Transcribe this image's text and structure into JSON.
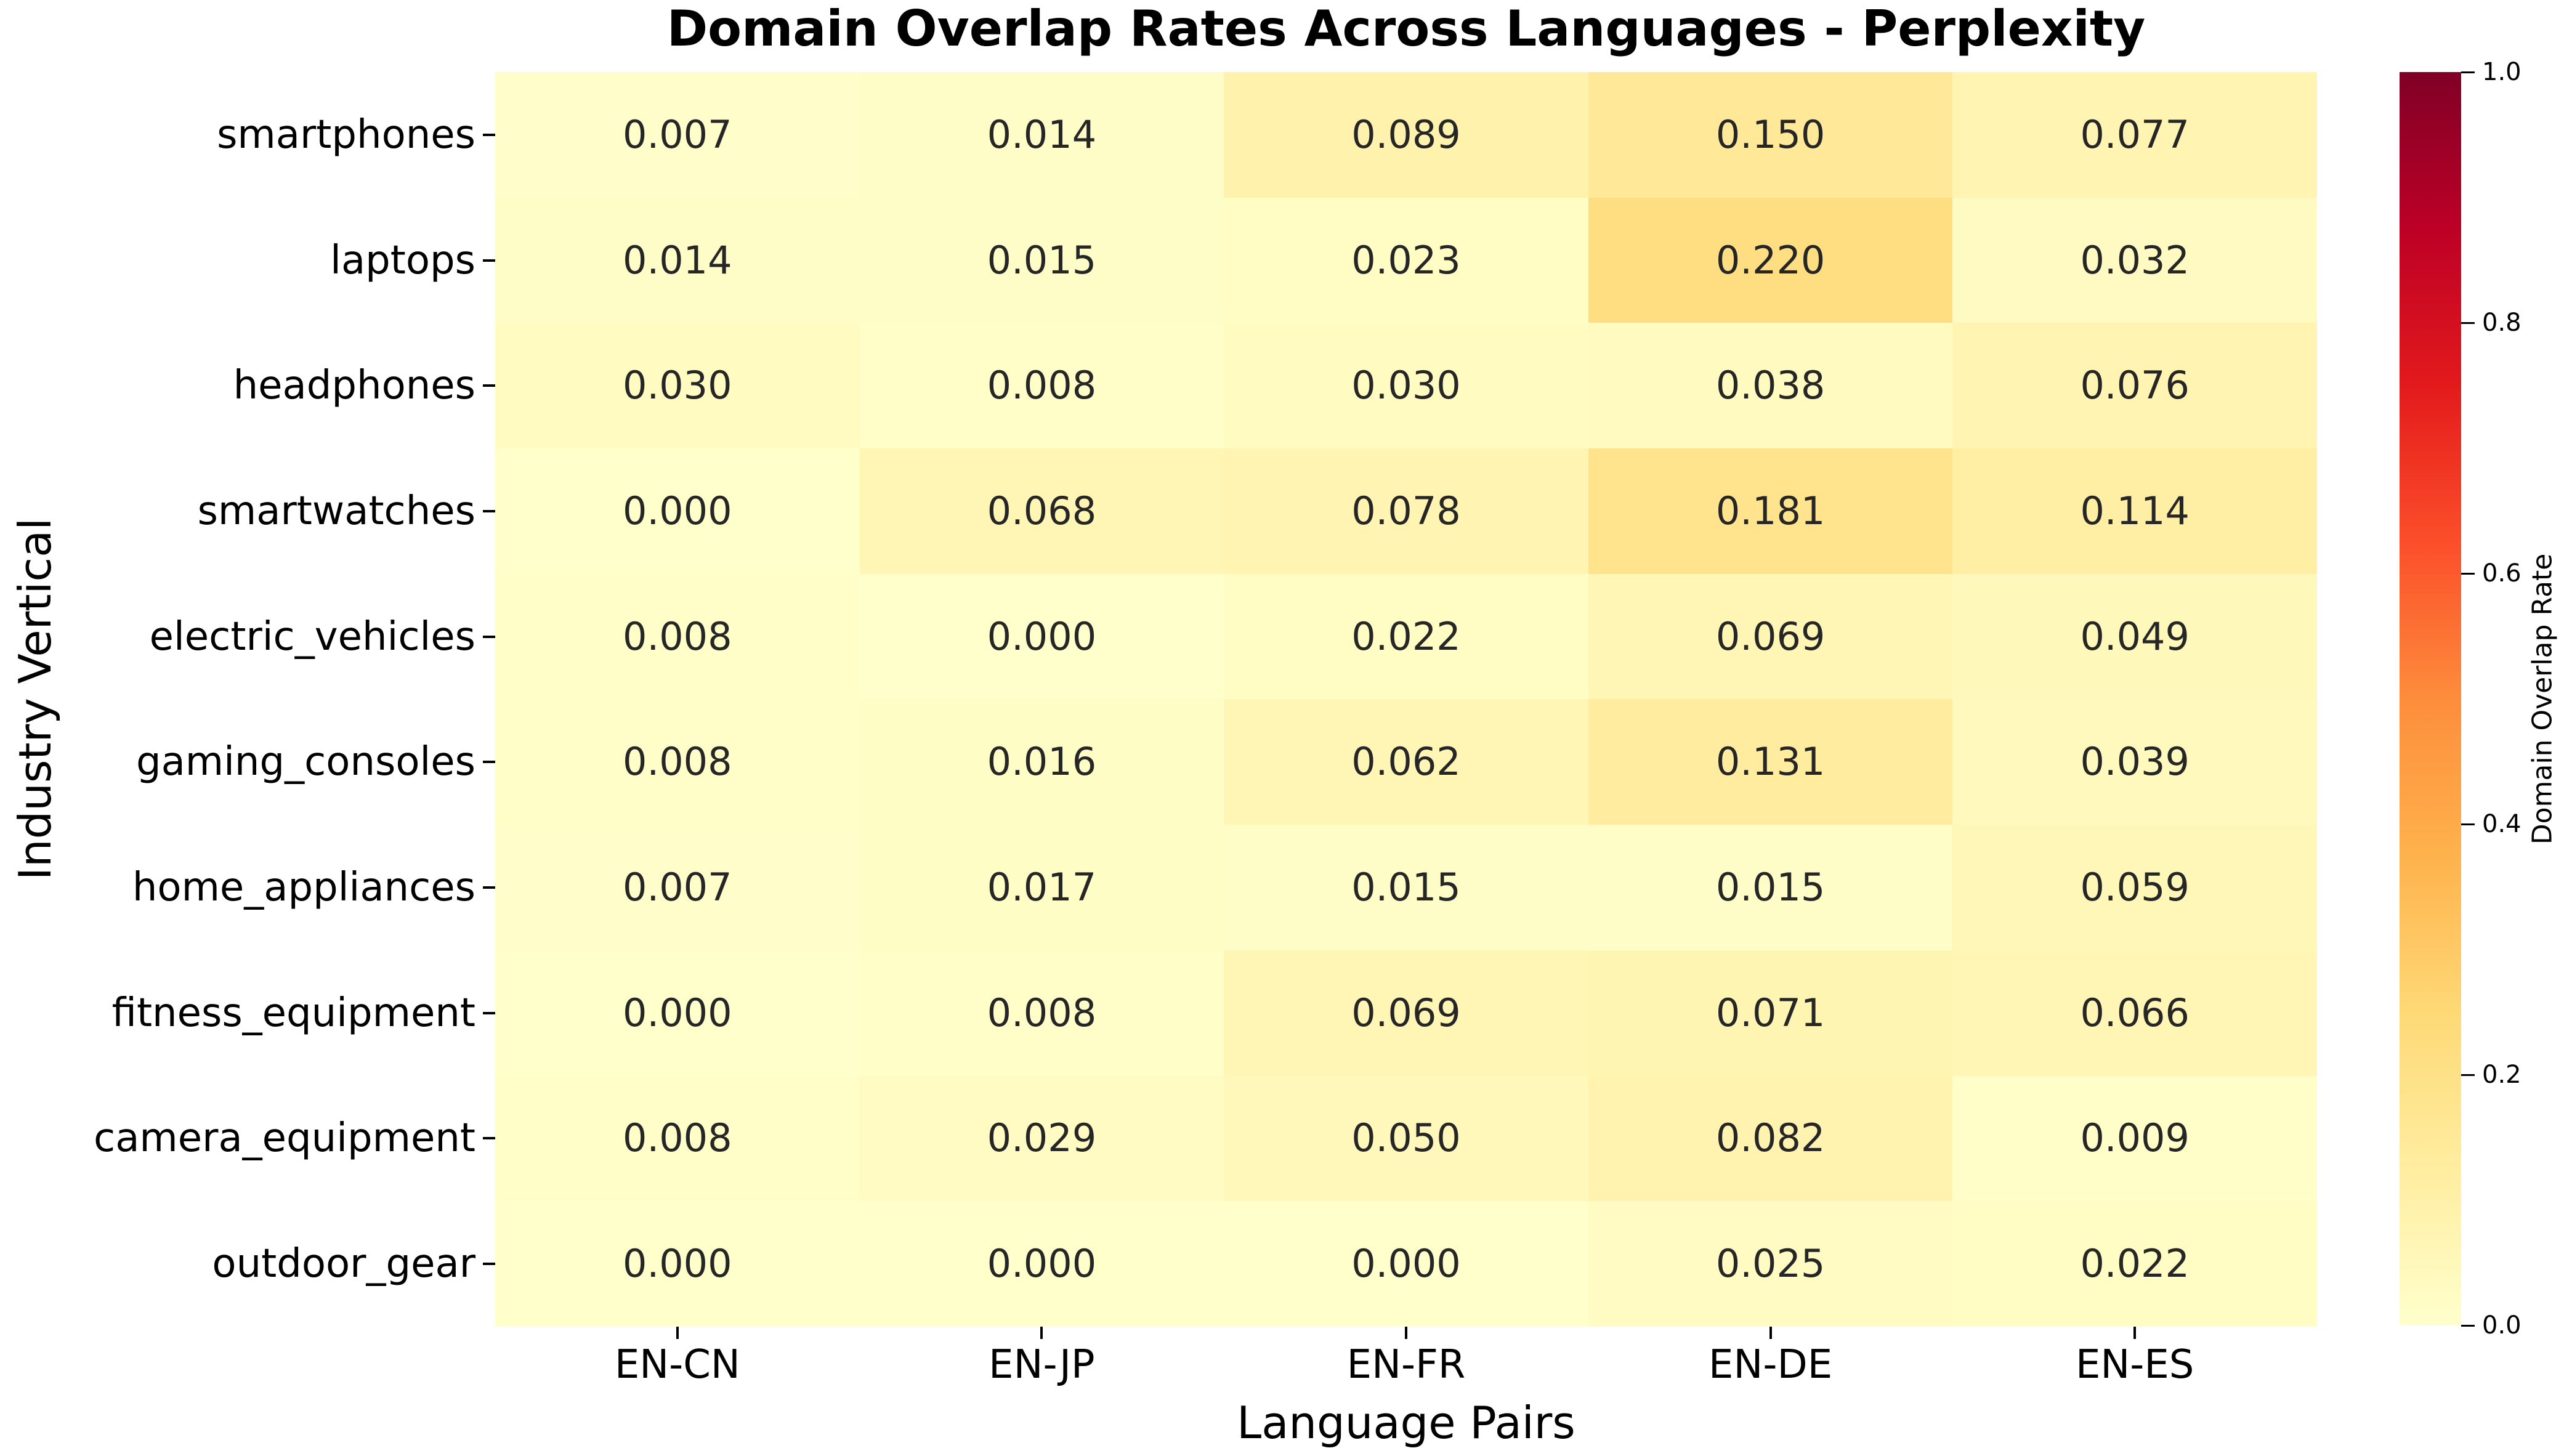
{
  "chart_data": {
    "type": "heatmap",
    "title": "Domain Overlap Rates Across Languages - Perplexity",
    "xlabel": "Language Pairs",
    "ylabel": "Industry Vertical",
    "x_categories": [
      "EN-CN",
      "EN-JP",
      "EN-FR",
      "EN-DE",
      "EN-ES"
    ],
    "y_categories": [
      "smartphones",
      "laptops",
      "headphones",
      "smartwatches",
      "electric_vehicles",
      "gaming_consoles",
      "home_appliances",
      "fitness_equipment",
      "camera_equipment",
      "outdoor_gear"
    ],
    "values": [
      [
        0.007,
        0.014,
        0.089,
        0.15,
        0.077
      ],
      [
        0.014,
        0.015,
        0.023,
        0.22,
        0.032
      ],
      [
        0.03,
        0.008,
        0.03,
        0.038,
        0.076
      ],
      [
        0.0,
        0.068,
        0.078,
        0.181,
        0.114
      ],
      [
        0.008,
        0.0,
        0.022,
        0.069,
        0.049
      ],
      [
        0.008,
        0.016,
        0.062,
        0.131,
        0.039
      ],
      [
        0.007,
        0.017,
        0.015,
        0.015,
        0.059
      ],
      [
        0.0,
        0.008,
        0.069,
        0.071,
        0.066
      ],
      [
        0.008,
        0.029,
        0.05,
        0.082,
        0.009
      ],
      [
        0.0,
        0.0,
        0.0,
        0.025,
        0.022
      ]
    ],
    "value_decimals": 3,
    "vmin": 0.0,
    "vmax": 1.0,
    "grid": false,
    "colormap": {
      "name": "YlOrRd",
      "anchors": [
        "#ffffcc",
        "#ffeda0",
        "#fed976",
        "#feb24c",
        "#fd8d3c",
        "#fc4e2a",
        "#e31a1c",
        "#bd0026",
        "#800026"
      ]
    },
    "annotation_color": "#262626",
    "background_color": "#ffffff",
    "colorbar": {
      "label": "Domain Overlap Rate",
      "ticks": [
        "0.0",
        "0.2",
        "0.4",
        "0.6",
        "0.8",
        "1.0"
      ],
      "position": "right"
    }
  }
}
